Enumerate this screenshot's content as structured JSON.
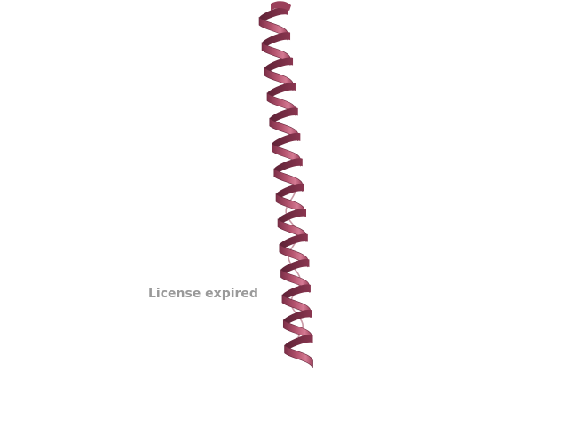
{
  "viewer": {
    "watermark_text": "License expired",
    "ribbon_color": "#b5546f",
    "ribbon_dark": "#7d2f48",
    "ribbon_light": "#d47a93",
    "loop_color": "#c99aa6",
    "background": "#ffffff",
    "structure_type": "alpha-helix"
  }
}
